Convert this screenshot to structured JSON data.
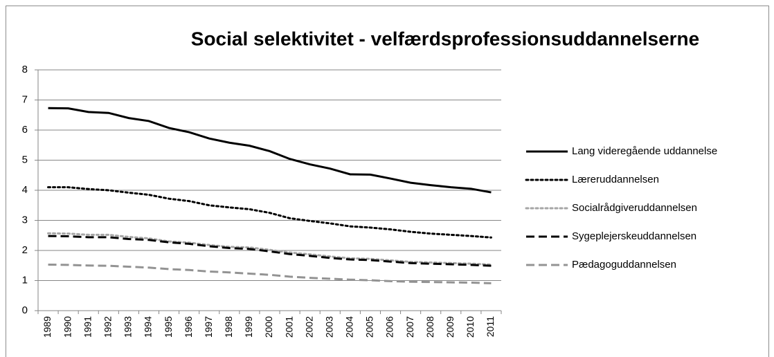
{
  "chart_data": {
    "type": "line",
    "title": "Social selektivitet - velfærdsprofessionsuddannelserne",
    "categories": [
      "1989",
      "1990",
      "1991",
      "1992",
      "1993",
      "1994",
      "1995",
      "1996",
      "1997",
      "1998",
      "1999",
      "2000",
      "2001",
      "2002",
      "2003",
      "2004",
      "2005",
      "2006",
      "2007",
      "2008",
      "2009",
      "2010",
      "2011"
    ],
    "series": [
      {
        "name": "Lang videregående uddannelse",
        "color": "#000000",
        "style": "solid",
        "values": [
          6.73,
          6.72,
          6.6,
          6.57,
          6.4,
          6.3,
          6.07,
          5.93,
          5.72,
          5.58,
          5.48,
          5.3,
          5.04,
          4.86,
          4.72,
          4.53,
          4.52,
          4.39,
          4.25,
          4.17,
          4.1,
          4.05,
          3.93
        ]
      },
      {
        "name": "Læreruddannelsen",
        "color": "#000000",
        "style": "dotted",
        "values": [
          4.1,
          4.1,
          4.04,
          4.0,
          3.92,
          3.85,
          3.72,
          3.64,
          3.5,
          3.43,
          3.37,
          3.25,
          3.07,
          2.98,
          2.9,
          2.8,
          2.76,
          2.7,
          2.62,
          2.56,
          2.52,
          2.48,
          2.43
        ]
      },
      {
        "name": "Socialrådgiveruddannelsen",
        "color": "#a6a6a6",
        "style": "dotted",
        "values": [
          2.57,
          2.56,
          2.52,
          2.52,
          2.45,
          2.4,
          2.3,
          2.26,
          2.18,
          2.12,
          2.1,
          2.02,
          1.93,
          1.87,
          1.8,
          1.74,
          1.72,
          1.67,
          1.62,
          1.6,
          1.58,
          1.56,
          1.53
        ]
      },
      {
        "name": "Sygeplejerskeuddannelsen",
        "color": "#000000",
        "style": "dashed",
        "values": [
          2.48,
          2.47,
          2.44,
          2.44,
          2.38,
          2.35,
          2.27,
          2.22,
          2.14,
          2.08,
          2.05,
          1.97,
          1.88,
          1.82,
          1.75,
          1.7,
          1.68,
          1.63,
          1.58,
          1.56,
          1.54,
          1.52,
          1.49
        ]
      },
      {
        "name": "Pædagoguddannelsen",
        "color": "#939393",
        "style": "dashed",
        "values": [
          1.53,
          1.52,
          1.5,
          1.49,
          1.46,
          1.43,
          1.38,
          1.35,
          1.3,
          1.27,
          1.23,
          1.19,
          1.13,
          1.09,
          1.06,
          1.03,
          1.01,
          0.98,
          0.96,
          0.95,
          0.94,
          0.93,
          0.91
        ]
      }
    ],
    "ylim": [
      0,
      8
    ],
    "yticks": [
      0,
      1,
      2,
      3,
      4,
      5,
      6,
      7,
      8
    ],
    "grid": true,
    "legend": "right"
  }
}
